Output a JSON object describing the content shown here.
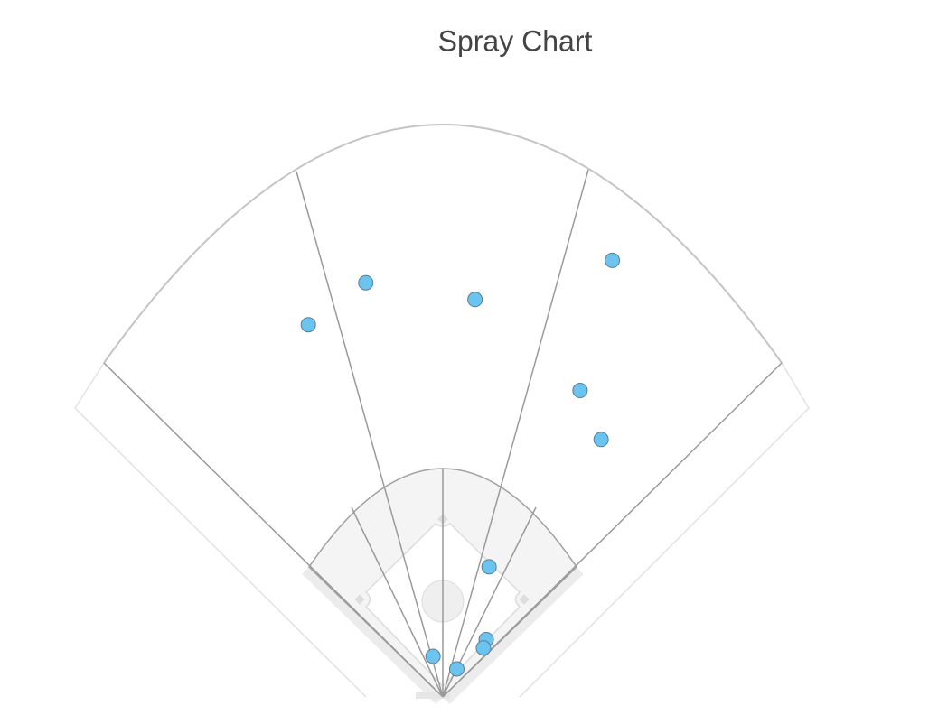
{
  "chart_data": {
    "type": "scatter",
    "title": "Spray Chart",
    "x": [
      -96,
      -55,
      23,
      121,
      98,
      113,
      33,
      31,
      29,
      -7,
      10
    ],
    "values": [
      266,
      296,
      284,
      312,
      219,
      184,
      93,
      41,
      35,
      29,
      20
    ],
    "color": "#6bc3f0",
    "xlim": [
      -260,
      260
    ],
    "ylim": [
      0,
      420
    ]
  }
}
